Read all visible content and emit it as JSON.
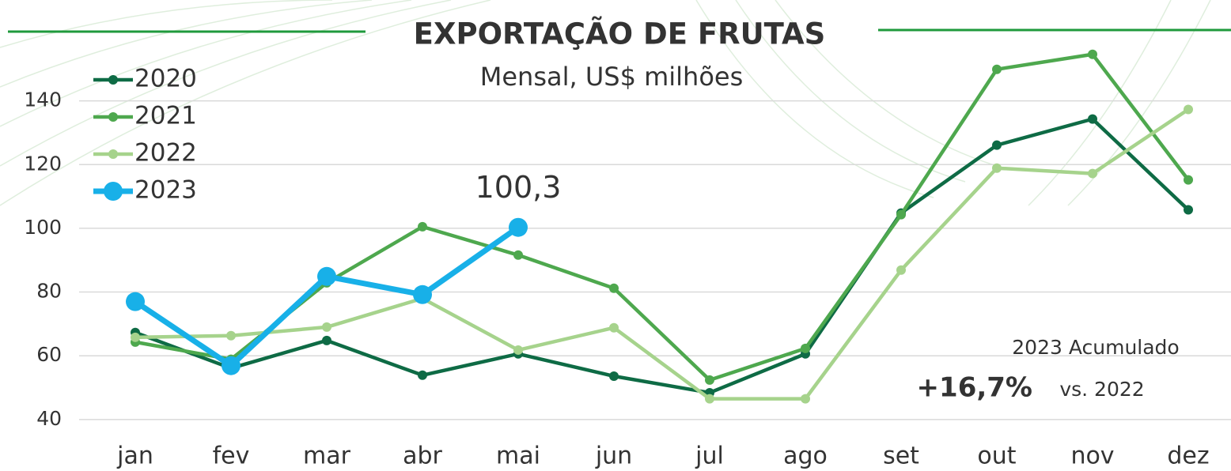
{
  "chart_data": {
    "type": "line",
    "title": "EXPORTAÇÃO DE FRUTAS",
    "subtitle": "Mensal, US$ milhões",
    "categories": [
      "jan",
      "fev",
      "mar",
      "abr",
      "mai",
      "jun",
      "jul",
      "ago",
      "set",
      "out",
      "nov",
      "dez"
    ],
    "series": [
      {
        "name": "2020",
        "color": "#0e6b45",
        "values": [
          67.3,
          56.1,
          64.8,
          53.9,
          60.6,
          53.6,
          48.4,
          60.6,
          104.8,
          126.1,
          134.3,
          105.8
        ]
      },
      {
        "name": "2021",
        "color": "#4ea84e",
        "values": [
          64.3,
          58.9,
          82.9,
          100.5,
          91.6,
          81.2,
          52.4,
          62.3,
          104.3,
          149.9,
          154.6,
          115.2
        ]
      },
      {
        "name": "2022",
        "color": "#a6d38c",
        "values": [
          65.8,
          66.3,
          69.0,
          78.0,
          61.8,
          68.8,
          46.5,
          46.5,
          86.9,
          118.9,
          117.2,
          137.3
        ]
      },
      {
        "name": "2023",
        "color": "#18b0e8",
        "values": [
          77.0,
          56.9,
          84.9,
          79.2,
          100.3,
          null,
          null,
          null,
          null,
          null,
          null,
          null
        ],
        "value_labels": [
          null,
          null,
          null,
          null,
          "100,3",
          null,
          null,
          null,
          null,
          null,
          null,
          null
        ]
      }
    ],
    "ylim": [
      35,
      160
    ],
    "yticks": [
      40,
      60,
      80,
      100,
      120,
      140
    ],
    "grid": true,
    "legend": "upper left",
    "annotations": [
      "2023 Acumulado",
      "+16,7%",
      "vs. 2022"
    ]
  }
}
